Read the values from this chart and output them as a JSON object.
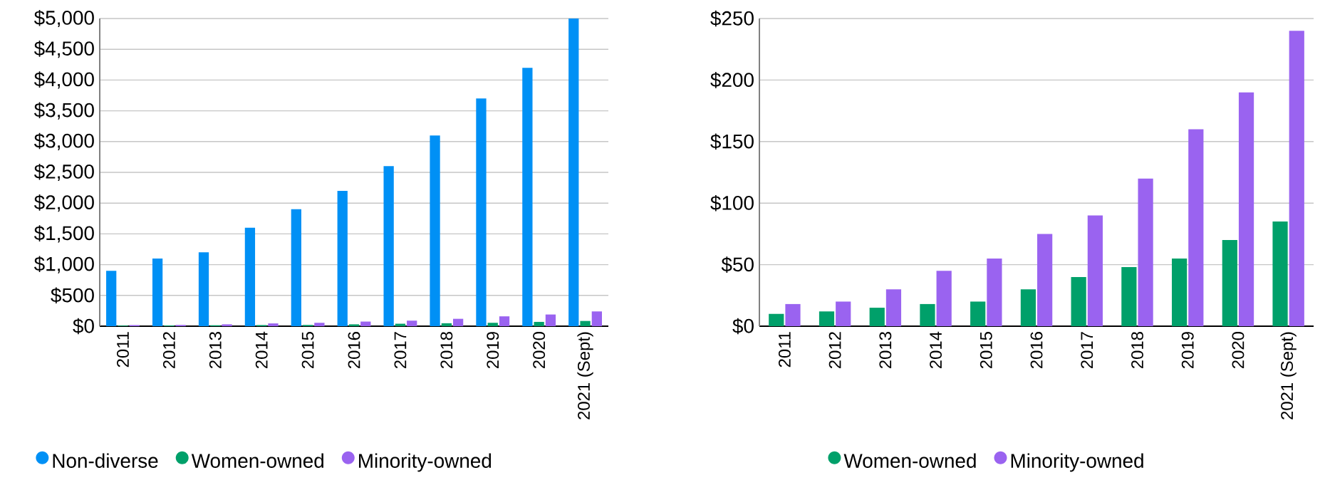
{
  "chart_data": [
    {
      "type": "bar",
      "categories": [
        "2011",
        "2012",
        "2013",
        "2014",
        "2015",
        "2016",
        "2017",
        "2018",
        "2019",
        "2020",
        "2021 (Sept)"
      ],
      "series": [
        {
          "name": "Non-diverse",
          "color": "#0090f5",
          "values": [
            900,
            1100,
            1200,
            1600,
            1900,
            2200,
            2600,
            3100,
            3700,
            4200,
            5000
          ]
        },
        {
          "name": "Women-owned",
          "color": "#00a06a",
          "values": [
            10,
            12,
            15,
            18,
            20,
            30,
            40,
            48,
            55,
            70,
            85
          ]
        },
        {
          "name": "Minority-owned",
          "color": "#9a63f0",
          "values": [
            18,
            20,
            30,
            45,
            55,
            75,
            90,
            120,
            160,
            190,
            240
          ]
        }
      ],
      "ylim": [
        0,
        5000
      ],
      "yticks": [
        {
          "value": 0,
          "label": "$0"
        },
        {
          "value": 500,
          "label": "$500"
        },
        {
          "value": 1000,
          "label": "$1,000"
        },
        {
          "value": 1500,
          "label": "$1,500"
        },
        {
          "value": 2000,
          "label": "$2,000"
        },
        {
          "value": 2500,
          "label": "$2,500"
        },
        {
          "value": 3000,
          "label": "$3,000"
        },
        {
          "value": 3500,
          "label": "$3,500"
        },
        {
          "value": 4000,
          "label": "$4,000"
        },
        {
          "value": 4500,
          "label": "$4,500"
        },
        {
          "value": 5000,
          "label": "$5,000"
        }
      ],
      "grid": "y",
      "legend": "bottom"
    },
    {
      "type": "bar",
      "categories": [
        "2011",
        "2012",
        "2013",
        "2014",
        "2015",
        "2016",
        "2017",
        "2018",
        "2019",
        "2020",
        "2021 (Sept)"
      ],
      "series": [
        {
          "name": "Women-owned",
          "color": "#00a06a",
          "values": [
            10,
            12,
            15,
            18,
            20,
            30,
            40,
            48,
            55,
            70,
            85
          ]
        },
        {
          "name": "Minority-owned",
          "color": "#9a63f0",
          "values": [
            18,
            20,
            30,
            45,
            55,
            75,
            90,
            120,
            160,
            190,
            240
          ]
        }
      ],
      "ylim": [
        0,
        250
      ],
      "yticks": [
        {
          "value": 0,
          "label": "$0"
        },
        {
          "value": 50,
          "label": "$50"
        },
        {
          "value": 100,
          "label": "$100"
        },
        {
          "value": 150,
          "label": "$150"
        },
        {
          "value": 200,
          "label": "$200"
        },
        {
          "value": 250,
          "label": "$250"
        }
      ],
      "grid": "y",
      "legend": "bottom"
    }
  ]
}
